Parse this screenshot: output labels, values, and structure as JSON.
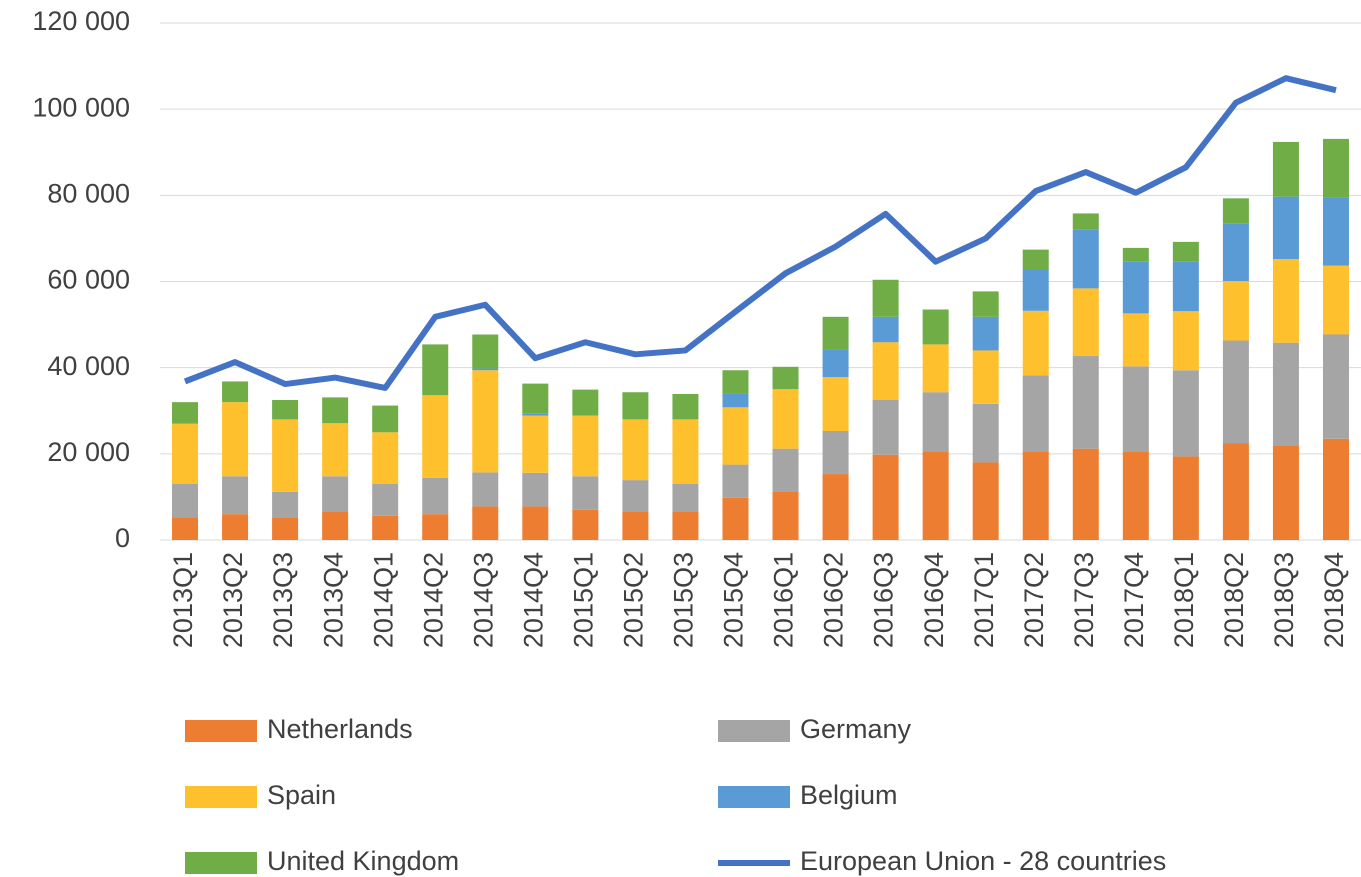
{
  "chart_data": {
    "type": "bar",
    "stacked": true,
    "categories": [
      "2013Q1",
      "2013Q2",
      "2013Q3",
      "2013Q4",
      "2014Q1",
      "2014Q2",
      "2014Q3",
      "2014Q4",
      "2015Q1",
      "2015Q2",
      "2015Q3",
      "2015Q4",
      "2016Q1",
      "2016Q2",
      "2016Q3",
      "2016Q4",
      "2017Q1",
      "2017Q2",
      "2017Q3",
      "2017Q4",
      "2018Q1",
      "2018Q2",
      "2018Q3",
      "2018Q4"
    ],
    "series": [
      {
        "name": "Netherlands",
        "color": "#ed7d31",
        "type": "bar",
        "values": [
          5300,
          6000,
          5200,
          6500,
          5600,
          6000,
          7800,
          7800,
          7000,
          6500,
          6500,
          9800,
          11300,
          15300,
          19800,
          20600,
          18000,
          20600,
          21200,
          20600,
          19400,
          22500,
          22000,
          23500
        ]
      },
      {
        "name": "Germany",
        "color": "#a5a5a5",
        "type": "bar",
        "values": [
          7700,
          8800,
          6000,
          8300,
          7400,
          8400,
          7900,
          7800,
          7800,
          7400,
          6500,
          7700,
          9900,
          10000,
          12700,
          13700,
          13600,
          17600,
          21500,
          19700,
          20000,
          23800,
          23800,
          24200
        ]
      },
      {
        "name": "Spain",
        "color": "#ffc02d",
        "type": "bar",
        "values": [
          14000,
          17200,
          16800,
          12300,
          12000,
          19200,
          23700,
          13300,
          14100,
          14100,
          15000,
          13300,
          13800,
          12500,
          13400,
          11100,
          12400,
          15000,
          15700,
          12300,
          13700,
          13800,
          19400,
          16000
        ]
      },
      {
        "name": "Belgium",
        "color": "#5b9bd5",
        "type": "bar",
        "values": [
          0,
          0,
          0,
          0,
          0,
          0,
          400,
          500,
          0,
          0,
          0,
          3300,
          0,
          6400,
          5900,
          0,
          7800,
          9700,
          13600,
          12100,
          11600,
          13300,
          14500,
          15700
        ]
      },
      {
        "name": "United Kingdom",
        "color": "#70ad47",
        "type": "bar",
        "values": [
          5000,
          4800,
          4500,
          6000,
          6200,
          11800,
          7900,
          6900,
          6000,
          6300,
          5900,
          5300,
          5200,
          7600,
          8600,
          8100,
          5900,
          4500,
          3800,
          3100,
          4500,
          5900,
          12700,
          13700
        ]
      },
      {
        "name": "European Union - 28 countries",
        "color": "#4472c4",
        "type": "line",
        "values": [
          36800,
          41300,
          36200,
          37700,
          35300,
          51800,
          54600,
          42200,
          45900,
          43100,
          44000,
          53000,
          61900,
          68100,
          75700,
          64600,
          70000,
          81000,
          85400,
          80600,
          86500,
          101500,
          107200,
          104400
        ]
      }
    ],
    "ylim": [
      0,
      120000
    ],
    "yticks": [
      0,
      {
        "value": 20000,
        "label": "20 000"
      },
      {
        "value": 40000,
        "label": "40 000"
      },
      {
        "value": 60000,
        "label": "60 000"
      },
      {
        "value": 80000,
        "label": "80 000"
      },
      {
        "value": 100000,
        "label": "100 000"
      },
      {
        "value": 120000,
        "label": "120 000"
      }
    ],
    "grid": true,
    "legend": "bottom"
  }
}
